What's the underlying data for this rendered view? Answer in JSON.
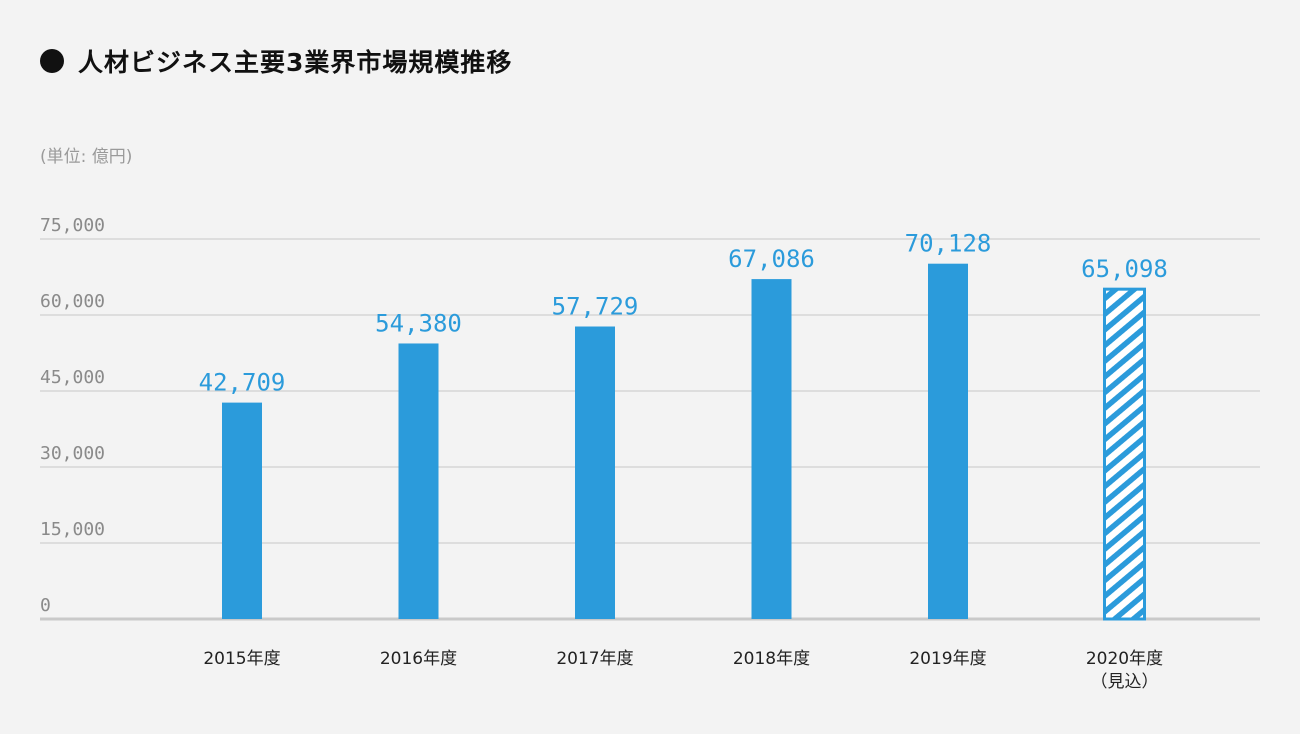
{
  "title": "人材ビジネス主要3業界市場規模推移",
  "unit": "(単位: 億円)",
  "colors": {
    "bar": "#2b9bdb",
    "value_label": "#2b9bdb",
    "grid": "#d6d6d6",
    "axis_line": "#c9c9c9",
    "tick_label": "#8a8a8a",
    "category_label": "#222222",
    "background": "#f3f3f3"
  },
  "chart_data": {
    "type": "bar",
    "title": "人材ビジネス主要3業界市場規模推移",
    "ylabel": "(単位: 億円)",
    "xlabel": "",
    "ylim": [
      0,
      75000
    ],
    "yticks": [
      0,
      15000,
      30000,
      45000,
      60000,
      75000
    ],
    "ytick_labels": [
      "0",
      "15,000",
      "30,000",
      "45,000",
      "60,000",
      "75,000"
    ],
    "grid": true,
    "categories": [
      [
        "2015年度"
      ],
      [
        "2016年度"
      ],
      [
        "2017年度"
      ],
      [
        "2018年度"
      ],
      [
        "2019年度"
      ],
      [
        "2020年度",
        "（見込）"
      ]
    ],
    "values": [
      42709,
      54380,
      57729,
      67086,
      70128,
      65098
    ],
    "value_labels": [
      "42,709",
      "54,380",
      "57,729",
      "67,086",
      "70,128",
      "65,098"
    ],
    "estimated": [
      false,
      false,
      false,
      false,
      false,
      true
    ]
  }
}
